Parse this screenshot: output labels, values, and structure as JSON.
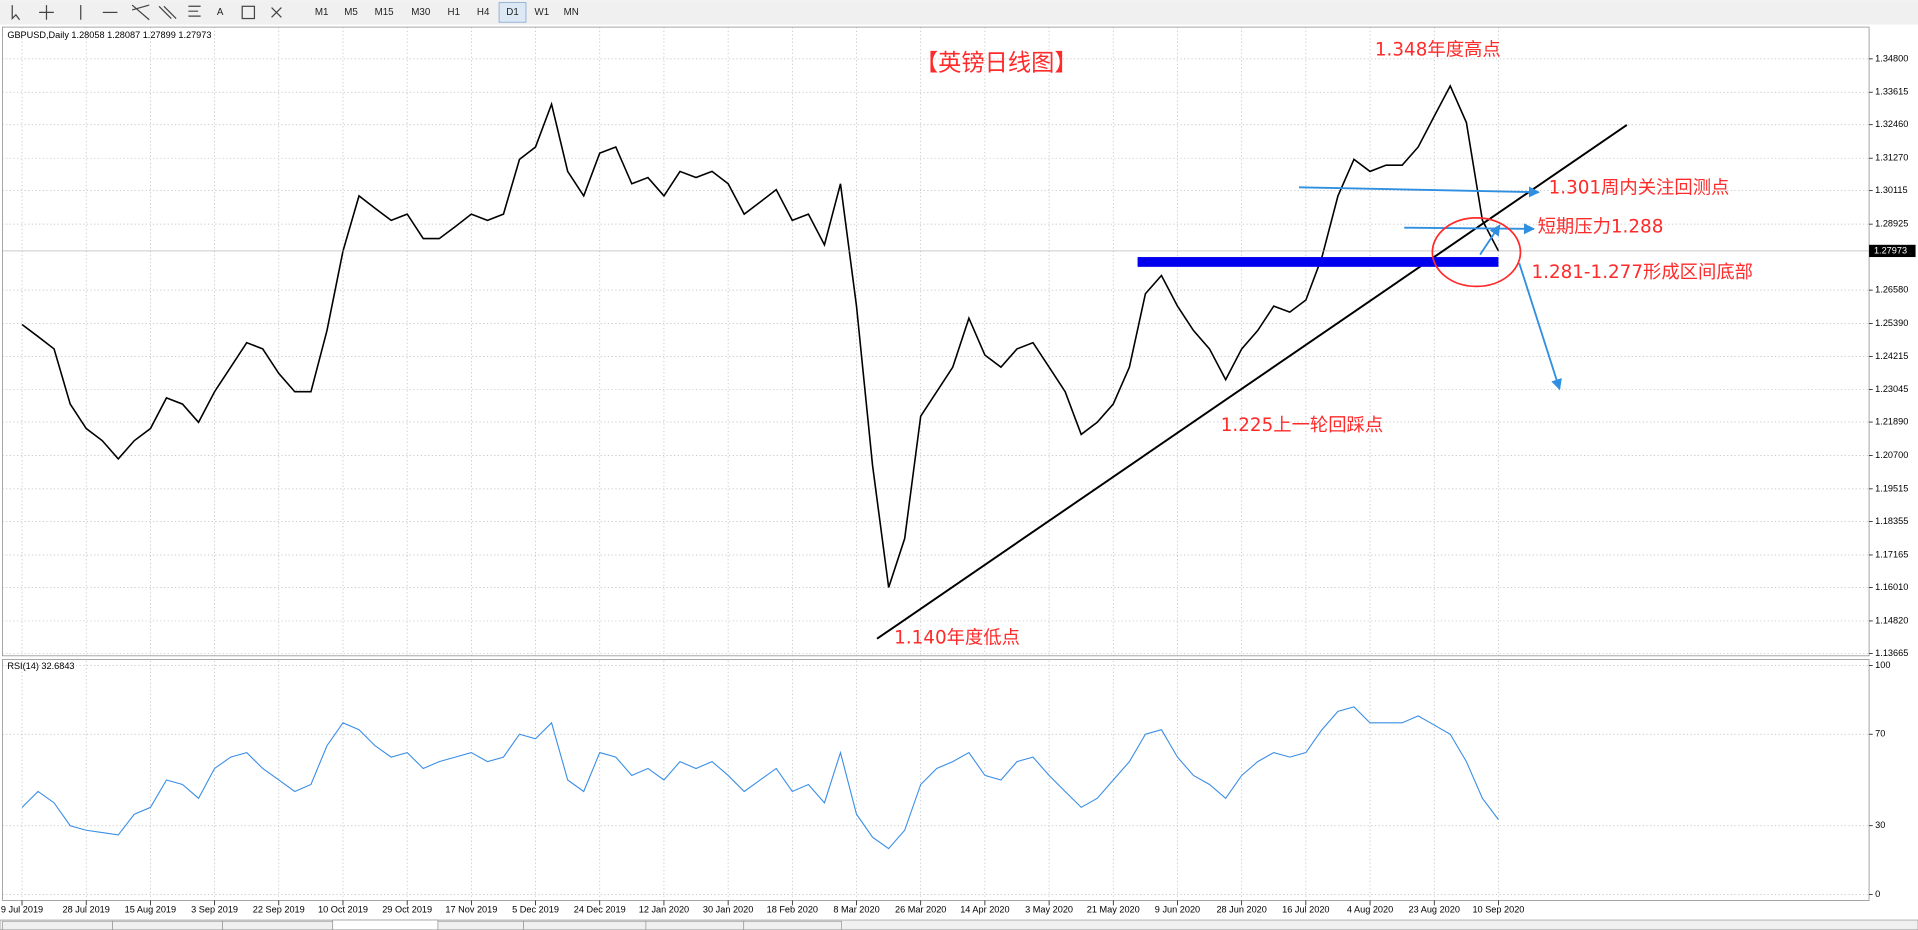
{
  "toolbar": {
    "text_tool": "A",
    "timeframes": [
      "M1",
      "M5",
      "M15",
      "M30",
      "H1",
      "H4",
      "D1",
      "W1",
      "MN"
    ]
  },
  "chart_data": [
    {
      "type": "line",
      "title": "GBPUSD,Daily  1.28058 1.28087 1.27899 1.27973",
      "color": "#000000",
      "grid": true,
      "categories": [
        "9 Jul 2019",
        null,
        null,
        null,
        "28 Jul 2019",
        null,
        null,
        null,
        "15 Aug 2019",
        null,
        null,
        null,
        "3 Sep 2019",
        null,
        null,
        null,
        "22 Sep 2019",
        null,
        null,
        null,
        "10 Oct 2019",
        null,
        null,
        null,
        "29 Oct 2019",
        null,
        null,
        null,
        "17 Nov 2019",
        null,
        null,
        null,
        "5 Dec 2019",
        null,
        null,
        null,
        "24 Dec 2019",
        null,
        null,
        null,
        "12 Jan 2020",
        null,
        null,
        null,
        "30 Jan 2020",
        null,
        null,
        null,
        "18 Feb 2020",
        null,
        null,
        null,
        "8 Mar 2020",
        null,
        null,
        null,
        "26 Mar 2020",
        null,
        null,
        null,
        "14 Apr 2020",
        null,
        null,
        null,
        "3 May 2020",
        null,
        null,
        null,
        "21 May 2020",
        null,
        null,
        null,
        "9 Jun 2020",
        null,
        null,
        null,
        "28 Jun 2020",
        null,
        null,
        null,
        "16 Jul 2020",
        null,
        null,
        null,
        "4 Aug 2020",
        null,
        null,
        null,
        "23 Aug 2020",
        null,
        null,
        null,
        "10 Sep 2020"
      ],
      "values": [
        1.2536,
        1.2493,
        1.2449,
        1.2253,
        1.2166,
        1.2123,
        1.2058,
        1.2123,
        1.2166,
        1.2275,
        1.2253,
        1.2188,
        1.2297,
        1.2384,
        1.2471,
        1.2449,
        1.2362,
        1.2297,
        1.2297,
        1.2514,
        1.2797,
        1.2993,
        1.2949,
        1.2906,
        1.2928,
        1.2841,
        1.2841,
        1.2884,
        1.2928,
        1.2906,
        1.2928,
        1.3123,
        1.3167,
        1.3319,
        1.308,
        1.2993,
        1.3145,
        1.3167,
        1.3036,
        1.3058,
        1.2993,
        1.308,
        1.3058,
        1.308,
        1.3036,
        1.2928,
        1.2971,
        1.3015,
        1.2906,
        1.2928,
        1.2819,
        1.3036,
        1.2601,
        1.2036,
        1.1601,
        1.1775,
        1.221,
        1.2297,
        1.2384,
        1.2558,
        1.2427,
        1.2384,
        1.2449,
        1.2471,
        1.2384,
        1.2297,
        1.2145,
        1.2188,
        1.2253,
        1.2384,
        1.2645,
        1.271,
        1.2601,
        1.2514,
        1.2449,
        1.234,
        1.2449,
        1.2514,
        1.2601,
        1.258,
        1.2623,
        1.2775,
        1.2993,
        1.3123,
        1.308,
        1.3102,
        1.3102,
        1.3167,
        1.3276,
        1.3384,
        1.3254,
        1.2906,
        1.27973
      ],
      "ylim": [
        1.1358,
        1.3593
      ],
      "yticks": [
        {
          "value": 1.348,
          "label": "1.34800"
        },
        {
          "value": 1.33615,
          "label": "1.33615"
        },
        {
          "value": 1.3246,
          "label": "1.32460"
        },
        {
          "value": 1.3127,
          "label": "1.31270"
        },
        {
          "value": 1.30115,
          "label": "1.30115"
        },
        {
          "value": 1.28925,
          "label": "1.28925"
        },
        {
          "value": 1.2658,
          "label": "1.26580"
        },
        {
          "value": 1.2539,
          "label": "1.25390"
        },
        {
          "value": 1.24215,
          "label": "1.24215"
        },
        {
          "value": 1.23045,
          "label": "1.23045"
        },
        {
          "value": 1.2189,
          "label": "1.21890"
        },
        {
          "value": 1.207,
          "label": "1.20700"
        },
        {
          "value": 1.19515,
          "label": "1.19515"
        },
        {
          "value": 1.18355,
          "label": "1.18355"
        },
        {
          "value": 1.17165,
          "label": "1.17165"
        },
        {
          "value": 1.1601,
          "label": "1.16010"
        },
        {
          "value": 1.1482,
          "label": "1.14820"
        },
        {
          "value": 1.13665,
          "label": "1.13665"
        }
      ],
      "current_price": {
        "value": 1.27973,
        "label": "1.27973"
      },
      "annotations": [
        "【英镑日线图】",
        "1.348年度高点",
        "1.301周内关注回测点",
        "短期压力1.288",
        "1.281-1.277形成区间底部",
        "1.225上一轮回踩点",
        "1.140年度低点"
      ]
    },
    {
      "type": "line",
      "title": "RSI(14) 32.6843",
      "color": "#3a8ee6",
      "grid": true,
      "values": [
        38,
        45,
        40,
        30,
        28,
        27,
        26,
        35,
        38,
        50,
        48,
        42,
        55,
        60,
        62,
        55,
        50,
        45,
        48,
        65,
        75,
        72,
        65,
        60,
        62,
        55,
        58,
        60,
        62,
        58,
        60,
        70,
        68,
        75,
        50,
        45,
        62,
        60,
        52,
        55,
        50,
        58,
        55,
        58,
        52,
        45,
        50,
        55,
        45,
        48,
        40,
        62,
        35,
        25,
        20,
        28,
        48,
        55,
        58,
        62,
        52,
        50,
        58,
        60,
        52,
        45,
        38,
        42,
        50,
        58,
        70,
        72,
        60,
        52,
        48,
        42,
        52,
        58,
        62,
        60,
        62,
        72,
        80,
        82,
        75,
        75,
        75,
        78,
        74,
        70,
        58,
        42,
        32.6843
      ],
      "ylim": [
        0,
        100
      ],
      "yticks": [
        100,
        70,
        30,
        0
      ]
    }
  ]
}
